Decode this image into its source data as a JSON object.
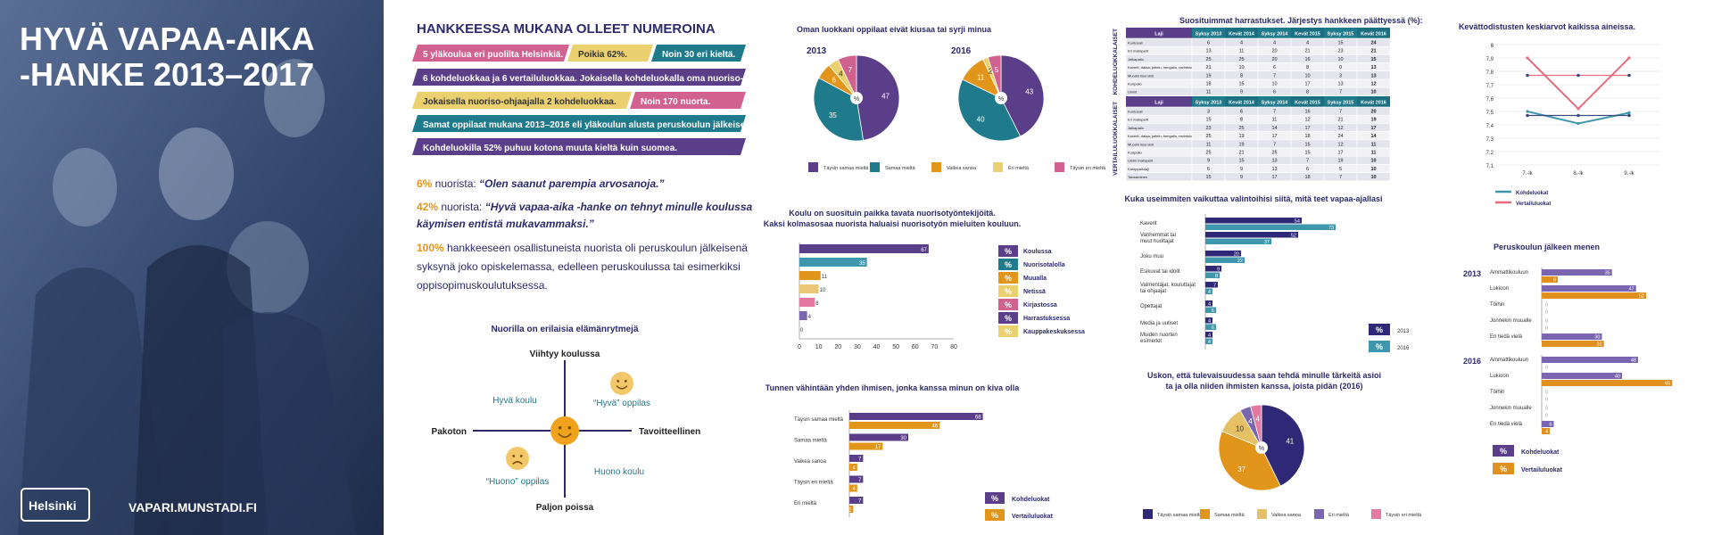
{
  "colors": {
    "purple": "#5b3e8a",
    "teal": "#1f7a8c",
    "orange": "#e2951b",
    "yellow": "#ead06f",
    "pink": "#d1628f",
    "navy": "#2f2876",
    "lilac": "#7a66b0",
    "lightpink": "#e47aa1",
    "blue": "#3f97ae",
    "darkorange": "#e0901e",
    "text": "#2c2a6b"
  },
  "hero": {
    "title1": "HYVÄ VAPAA-AIKA",
    "title2": "-HANKE 2013–2017",
    "logo": "Helsinki",
    "url": "VAPARI.MUNSTADI.FI"
  },
  "numbers": {
    "title": "HANKKEESSA MUKANA OLLEET NUMEROINA",
    "line1": {
      "a": "5 yläkoulua eri puolilta Helsinkiä.",
      "b": "Poikia 62%.",
      "c": "Noin 30 eri kieltä."
    },
    "line2": "6 kohdeluokkaa ja 6 vertailuluokkaa. Jokaisella kohdeluokalla oma nuoriso-ohjaaja.",
    "line3": {
      "a": "Jokaisella nuoriso-ohjaajalla 2 kohdeluokkaa.",
      "b": "Noin 170 nuorta."
    },
    "line4": "Samat oppilaat mukana 2013–2016 eli yläkoulun alusta peruskoulun jälkeiseen syksyyn.",
    "line5": "Kohdeluokilla 52% puhuu kotona muuta kieltä kuin suomea."
  },
  "quotes": [
    {
      "pct": "6%",
      "text": " nuorista: ",
      "quote": "“Olen saanut parempia arvosanoja.”"
    },
    {
      "pct": "42%",
      "text": " nuorista: ",
      "quote": "“Hyvä vapaa-aika -hanke on tehnyt minulle koulussa",
      "quote2": "käymisen entistä mukavammaksi.”"
    }
  ],
  "stmt100": {
    "pct": "100%",
    "l1": " hankkeeseen osallistuneista nuorista oli peruskoulun jälkeisenä",
    "l2": "syksynä joko opiskelemassa, edelleen peruskoulussa tai esimerkiksi",
    "l3": "oppisopimuskoulutuksessa."
  },
  "rhythm": {
    "title": "Nuorilla on erilaisia elämänrytmejä",
    "top": "Viihtyy koulussa",
    "bottom": "Paljon poissa",
    "left": "Pakoton",
    "right": "Tavoitteellinen",
    "q1": "Hyvä koulu",
    "q2": "“Hyvä” oppilas",
    "q3": "“Huono” oppilas",
    "q4": "Huono koulu"
  },
  "chart_data": [
    {
      "type": "pie",
      "title": "Oman luokkani oppilaat eivät kiusaa tai syrji minua",
      "labels": [
        "Täysin samaa mieltä",
        "Samaa mieltä",
        "Vaikea sanoa",
        "Eri mieltä",
        "Täysin eri mieltä"
      ],
      "series": [
        {
          "name": "2013",
          "values": [
            47,
            35,
            6,
            4,
            7
          ]
        },
        {
          "name": "2016",
          "values": [
            43,
            40,
            11,
            2,
            5
          ]
        }
      ]
    },
    {
      "type": "bar",
      "title": "Koulu on suosituin paikka tavata nuorisotyöntekijöitä.",
      "subtitle": "Kaksi kolmasosaa nuorista haluaisi nuorisotyön mieluiten kouluun.",
      "categories": [
        "Koulussa",
        "Nuorisotalolla",
        "Muualla",
        "Netissä",
        "Kirjastossa",
        "Harrastuksessa",
        "Kauppakeskuksessa"
      ],
      "values": [
        67,
        35,
        11,
        10,
        8,
        4,
        0
      ],
      "xlim": [
        0,
        80
      ],
      "xticks": [
        "0",
        "10",
        "20",
        "30",
        "40",
        "50",
        "60",
        "70",
        "80"
      ],
      "legend_symbol": "%"
    },
    {
      "type": "bar",
      "title": "Tunnen vähintään yhden ihmisen, jonka kanssa minun on kiva olla",
      "categories": [
        "Täysin samaa mieltä",
        "Samaa mieltä",
        "Vaikea sanoa",
        "Täysin eri mieltä",
        "Eri mieltä"
      ],
      "series": [
        {
          "name": "Kohdeluokat",
          "values": [
            68,
            30,
            7,
            7,
            7
          ]
        },
        {
          "name": "Vertailuluokat",
          "values": [
            46,
            17,
            4,
            4,
            2
          ]
        }
      ],
      "legend_symbol": "%"
    },
    {
      "type": "table",
      "title": "Suosituimmat harrastukset. Järjestys hankkeen päättyessä (%):",
      "columns": [
        "Laji",
        "Syksy 2013",
        "Kevät 2014",
        "Syksy 2014",
        "Kevät 2015",
        "Syksy 2015",
        "Kevät 2016"
      ],
      "groups": [
        {
          "name": "KOHDELUOKKALAISET",
          "rows": [
            [
              "Kuntosali",
              "6",
              "4",
              "4",
              "4",
              "15",
              "24"
            ],
            [
              "Eri mailapelit",
              "13",
              "11",
              "20",
              "21",
              "23",
              "21"
            ],
            [
              "Jalkapallo",
              "25",
              "25",
              "20",
              "16",
              "10",
              "15"
            ],
            [
              "Kaverit, dataa, juttelu, hengailu, ravintolat",
              "21",
              "10",
              "6",
              "8",
              "0",
              "13"
            ],
            [
              "Muodin lisurointi",
              "19",
              "8",
              "7",
              "10",
              "3",
              "13"
            ],
            [
              "Koripallo",
              "18",
              "15",
              "10",
              "17",
              "13",
              "12"
            ],
            [
              "Uinnit",
              "11",
              "9",
              "6",
              "8",
              "7",
              "10"
            ]
          ]
        },
        {
          "name": "VERTAILULUOKKALAISET",
          "rows": [
            [
              "Kuntosali",
              "3",
              "6",
              "7",
              "16",
              "7",
              "20"
            ],
            [
              "Eri mailapelit",
              "15",
              "8",
              "11",
              "12",
              "21",
              "19"
            ],
            [
              "Jalkapallo",
              "23",
              "25",
              "14",
              "17",
              "12",
              "17"
            ],
            [
              "Kaverit, dataa, juttelu, hengailu, ravintolat",
              "25",
              "19",
              "17",
              "18",
              "24",
              "14"
            ],
            [
              "Muodin lisurointi",
              "11",
              "19",
              "7",
              "15",
              "12",
              "11"
            ],
            [
              "Koripallo",
              "25",
              "21",
              "25",
              "15",
              "17",
              "11"
            ],
            [
              "Uistin mailapelit",
              "9",
              "15",
              "13",
              "7",
              "19",
              "10"
            ],
            [
              "Kamppailulaji",
              "6",
              "9",
              "13",
              "6",
              "5",
              "10"
            ],
            [
              "Tanssiminen",
              "15",
              "9",
              "17",
              "18",
              "7",
              "10"
            ]
          ]
        }
      ]
    },
    {
      "type": "bar",
      "title": "Kuka useimmiten vaikuttaa valintoihisi siitä, mitä teet vapaa-ajallasi",
      "categories": [
        "Kaverit",
        "Vanhemmat tai muut huoltajat",
        "Joku muu",
        "Esikuvat tai idolit",
        "Valmentajat, kouluttajat tai ohjaajat",
        "Opettajat",
        "Media ja uutiset",
        "Muiden nuorten esimerkit"
      ],
      "series": [
        {
          "name": "2013",
          "values": [
            54,
            52,
            20,
            9,
            7,
            4,
            4,
            4
          ]
        },
        {
          "name": "2016",
          "values": [
            73,
            37,
            22,
            8,
            4,
            6,
            6,
            4
          ]
        }
      ],
      "legend_symbol": "%"
    },
    {
      "type": "pie",
      "title": "Uskon, että tulevaisuudessa saan tehdä minulle tärkeitä asioita ja olla niiden ihmisten kanssa, joista pidän (2016)",
      "labels": [
        "Täysin samaa mieltä",
        "Samaa mieltä",
        "Vaikea sanoa",
        "Eri mieltä",
        "Täysin eri mieltä"
      ],
      "values": [
        41,
        37,
        10,
        4,
        4
      ]
    },
    {
      "type": "line",
      "title": "Kevättodistusten keskiarvot kaikissa aineissa.",
      "categories": [
        "7.-lk",
        "8.-lk",
        "9.-lk"
      ],
      "ylim": [
        7.1,
        8
      ],
      "yticks": [
        "8",
        "7,9",
        "7,8",
        "7,7",
        "7,6",
        "7,5",
        "7,4",
        "7,3",
        "7,2",
        "7,1"
      ],
      "series": [
        {
          "name": "Kohdeluokat",
          "values": [
            7.5,
            7.41,
            7.49
          ]
        },
        {
          "name": "Vertailuluokat",
          "values": [
            7.9,
            7.52,
            7.9
          ]
        }
      ],
      "extra_markers": [
        7.77,
        7.77,
        7.77,
        7.47,
        7.47,
        7.47
      ]
    },
    {
      "type": "bar",
      "title": "Peruskoulun jälkeen menen",
      "groups": [
        "2013",
        "2016"
      ],
      "categories": [
        "Ammattikouluun",
        "Lukioon",
        "Töihin",
        "Jonnekin muualle",
        "En tiedä vielä"
      ],
      "series": [
        {
          "name": "Kohdeluokat",
          "values": [
            [
              35,
              47,
              0,
              0,
              30
            ],
            [
              48,
              40,
              0,
              0,
              6
            ]
          ]
        },
        {
          "name": "Vertailuluokat",
          "values": [
            [
              8,
              52,
              0,
              0,
              31
            ],
            [
              0,
              65,
              0,
              0,
              4
            ]
          ]
        }
      ],
      "legend_symbol": "%"
    }
  ]
}
